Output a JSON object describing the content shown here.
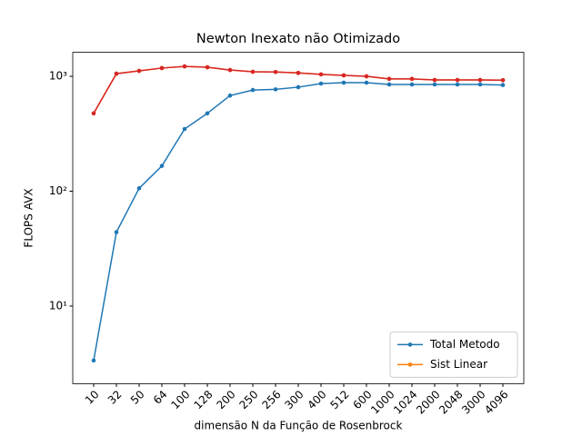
{
  "chart_data": {
    "type": "line",
    "title": "Newton Inexato não Otimizado",
    "xlabel": "dimensão N da Função de Rosenbrock",
    "ylabel": "FLOPS AVX",
    "categories": [
      "10",
      "32",
      "50",
      "64",
      "100",
      "128",
      "200",
      "250",
      "256",
      "300",
      "400",
      "512",
      "600",
      "1000",
      "1024",
      "2000",
      "2048",
      "3000",
      "4096"
    ],
    "yscale": "log",
    "ylim": [
      2.11,
      1618
    ],
    "yticks": [
      {
        "value": 10,
        "label": "10¹"
      },
      {
        "value": 100,
        "label": "10²"
      },
      {
        "value": 1000,
        "label": "10³"
      }
    ],
    "legend": "lower right",
    "series": [
      {
        "name": "Total Metodo",
        "color": "#1f77b4",
        "values": [
          3.36,
          44,
          106,
          166,
          348,
          476,
          680,
          760,
          770,
          805,
          865,
          880,
          880,
          850,
          850,
          850,
          850,
          850,
          840
        ]
      },
      {
        "name": "Sist Linear",
        "color": "#ff7f0e",
        "values": [
          476,
          1055,
          1115,
          1180,
          1220,
          1200,
          1135,
          1095,
          1090,
          1070,
          1040,
          1020,
          1000,
          950,
          950,
          930,
          930,
          930,
          925
        ]
      },
      {
        "color": "#d62728",
        "values": [
          476,
          1055,
          1115,
          1180,
          1220,
          1200,
          1135,
          1095,
          1090,
          1070,
          1040,
          1020,
          1000,
          950,
          950,
          930,
          930,
          930,
          925
        ]
      }
    ]
  }
}
